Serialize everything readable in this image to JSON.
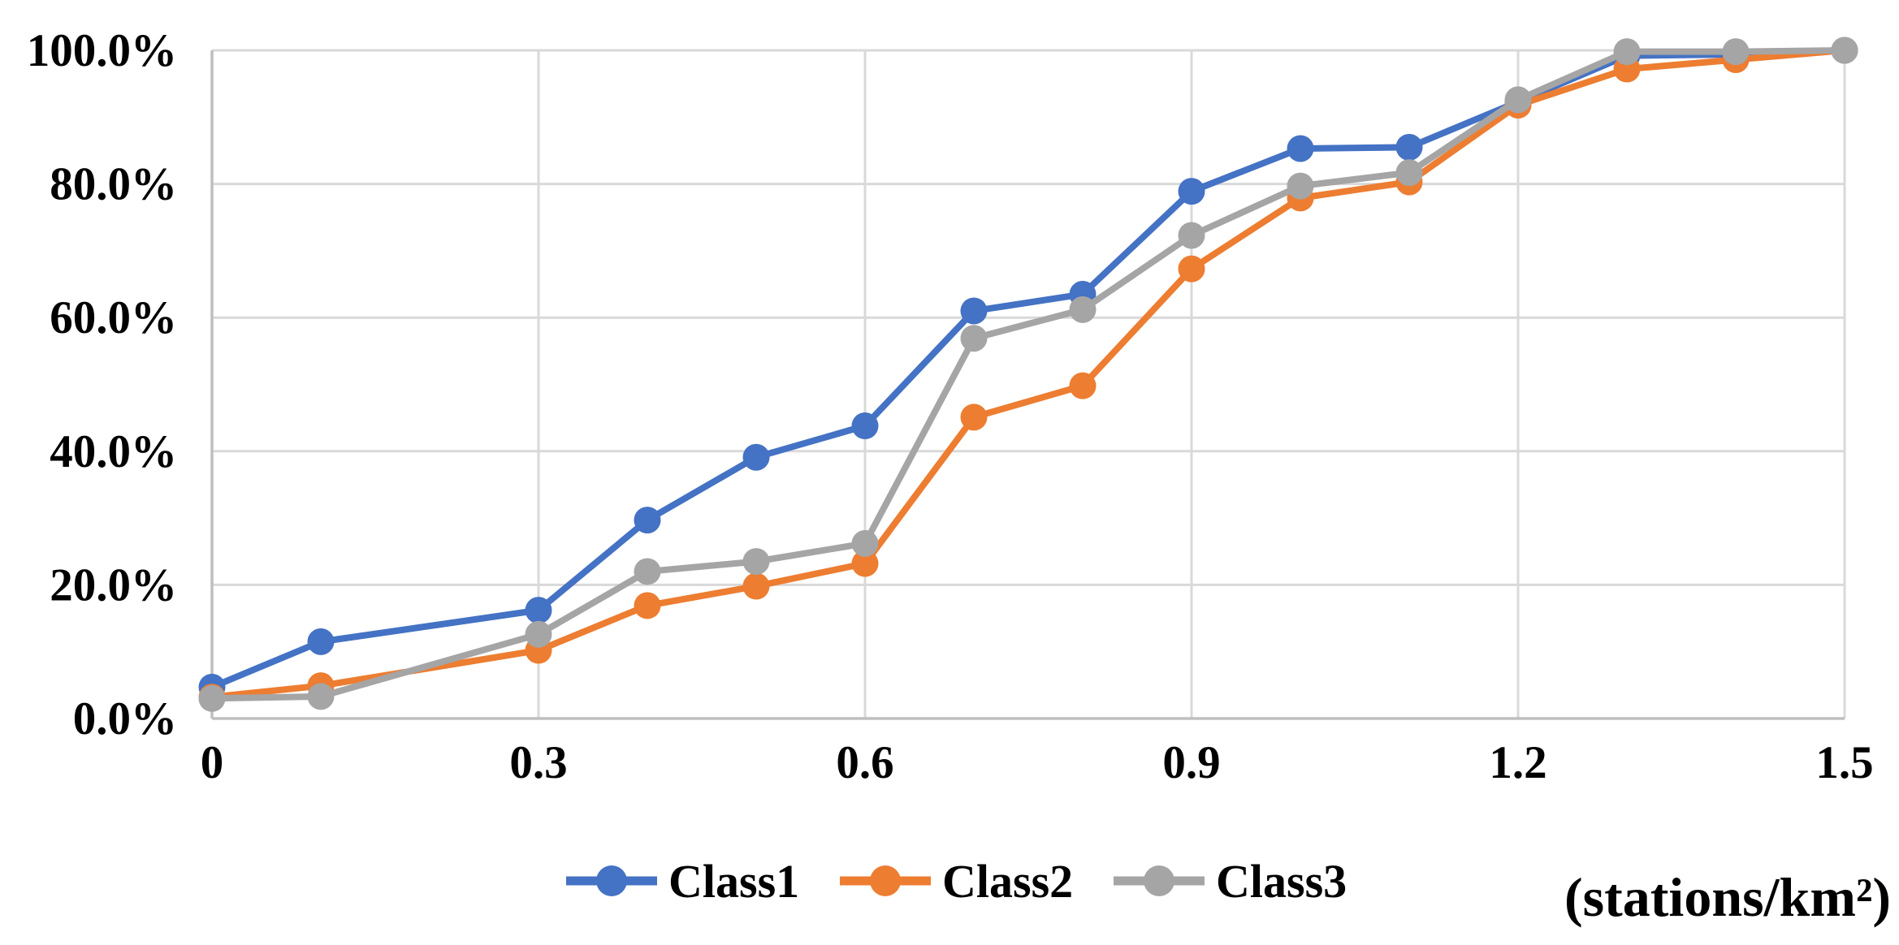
{
  "chart_data": {
    "type": "line",
    "title": "",
    "xlabel": "(stations/km²)",
    "ylabel": "",
    "x": [
      0,
      0.1,
      0.3,
      0.4,
      0.5,
      0.6,
      0.7,
      0.8,
      0.9,
      1.0,
      1.1,
      1.2,
      1.3,
      1.4,
      1.5
    ],
    "series": [
      {
        "name": "Class1",
        "color": "#4472C4",
        "values": [
          4.7,
          11.5,
          16.2,
          29.7,
          39.1,
          43.8,
          61.0,
          63.5,
          78.9,
          85.3,
          85.5,
          92.3,
          99.2,
          99.4,
          100.0
        ]
      },
      {
        "name": "Class2",
        "color": "#ED7D31",
        "values": [
          3.2,
          4.9,
          10.2,
          16.9,
          19.8,
          23.2,
          45.1,
          49.8,
          67.3,
          77.9,
          80.3,
          91.8,
          97.2,
          98.6,
          100.0
        ]
      },
      {
        "name": "Class3",
        "color": "#A5A5A5",
        "values": [
          3.0,
          3.3,
          12.6,
          22.0,
          23.5,
          26.2,
          56.9,
          61.2,
          72.3,
          79.7,
          81.7,
          92.6,
          99.8,
          99.8,
          100.0
        ]
      }
    ],
    "xlim": [
      0,
      1.5
    ],
    "ylim": [
      0,
      100
    ],
    "x_ticks": [
      "0",
      "0.3",
      "0.6",
      "0.9",
      "1.2",
      "1.5"
    ],
    "x_tick_values": [
      0,
      0.3,
      0.6,
      0.9,
      1.2,
      1.5
    ],
    "y_ticks": [
      "0.0%",
      "20.0%",
      "40.0%",
      "60.0%",
      "80.0%",
      "100.0%"
    ],
    "y_tick_values": [
      0,
      20,
      40,
      60,
      80,
      100
    ],
    "grid": true,
    "grid_color": "#D9D9D9",
    "axis_color": "#BFBFBF",
    "legend_position": "bottom",
    "legend_entries": [
      "Class1",
      "Class2",
      "Class3"
    ]
  }
}
